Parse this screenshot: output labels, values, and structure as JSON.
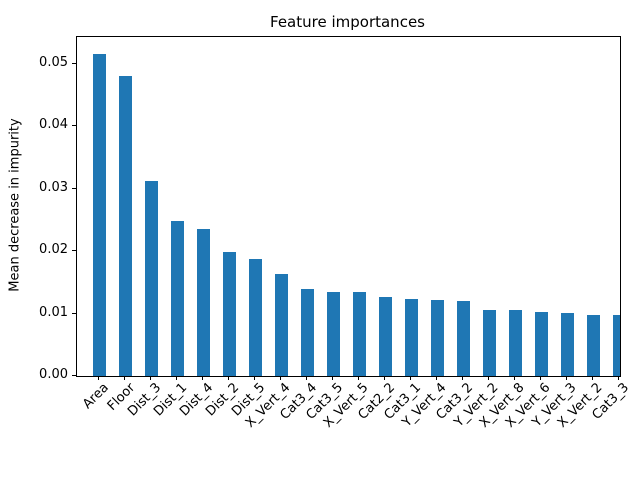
{
  "chart_data": {
    "type": "bar",
    "title": "Feature importances",
    "ylabel": "Mean decrease in impurity",
    "xlabel": "",
    "categories": [
      "Area",
      "Floor",
      "Dist_3",
      "Dist_1",
      "Dist_4",
      "Dist_2",
      "Dist_5",
      "X_Vert_4",
      "Cat3_4",
      "Cat3_5",
      "X_Vert_5",
      "Cat2_2",
      "Cat3_1",
      "Y_Vert_4",
      "Cat3_2",
      "Y_Vert_2",
      "X_Vert_8",
      "X_Vert_6",
      "Y_Vert_3",
      "X_Vert_2",
      "Cat3_3"
    ],
    "values": [
      0.0515,
      0.048,
      0.0313,
      0.0249,
      0.0235,
      0.0199,
      0.0187,
      0.0163,
      0.014,
      0.0135,
      0.0135,
      0.0127,
      0.0124,
      0.0122,
      0.012,
      0.0106,
      0.0105,
      0.0103,
      0.0101,
      0.0098,
      0.0098
    ],
    "ylim": [
      0,
      0.0543
    ],
    "ytick_labels": [
      "0.00",
      "0.01",
      "0.02",
      "0.03",
      "0.04",
      "0.05"
    ],
    "ytick_values": [
      0.0,
      0.01,
      0.02,
      0.03,
      0.04,
      0.05
    ],
    "xtick_rotation": 45,
    "bar_color": "#1f77b4",
    "text_color": "#000000",
    "grid": "off",
    "legend": "none"
  }
}
